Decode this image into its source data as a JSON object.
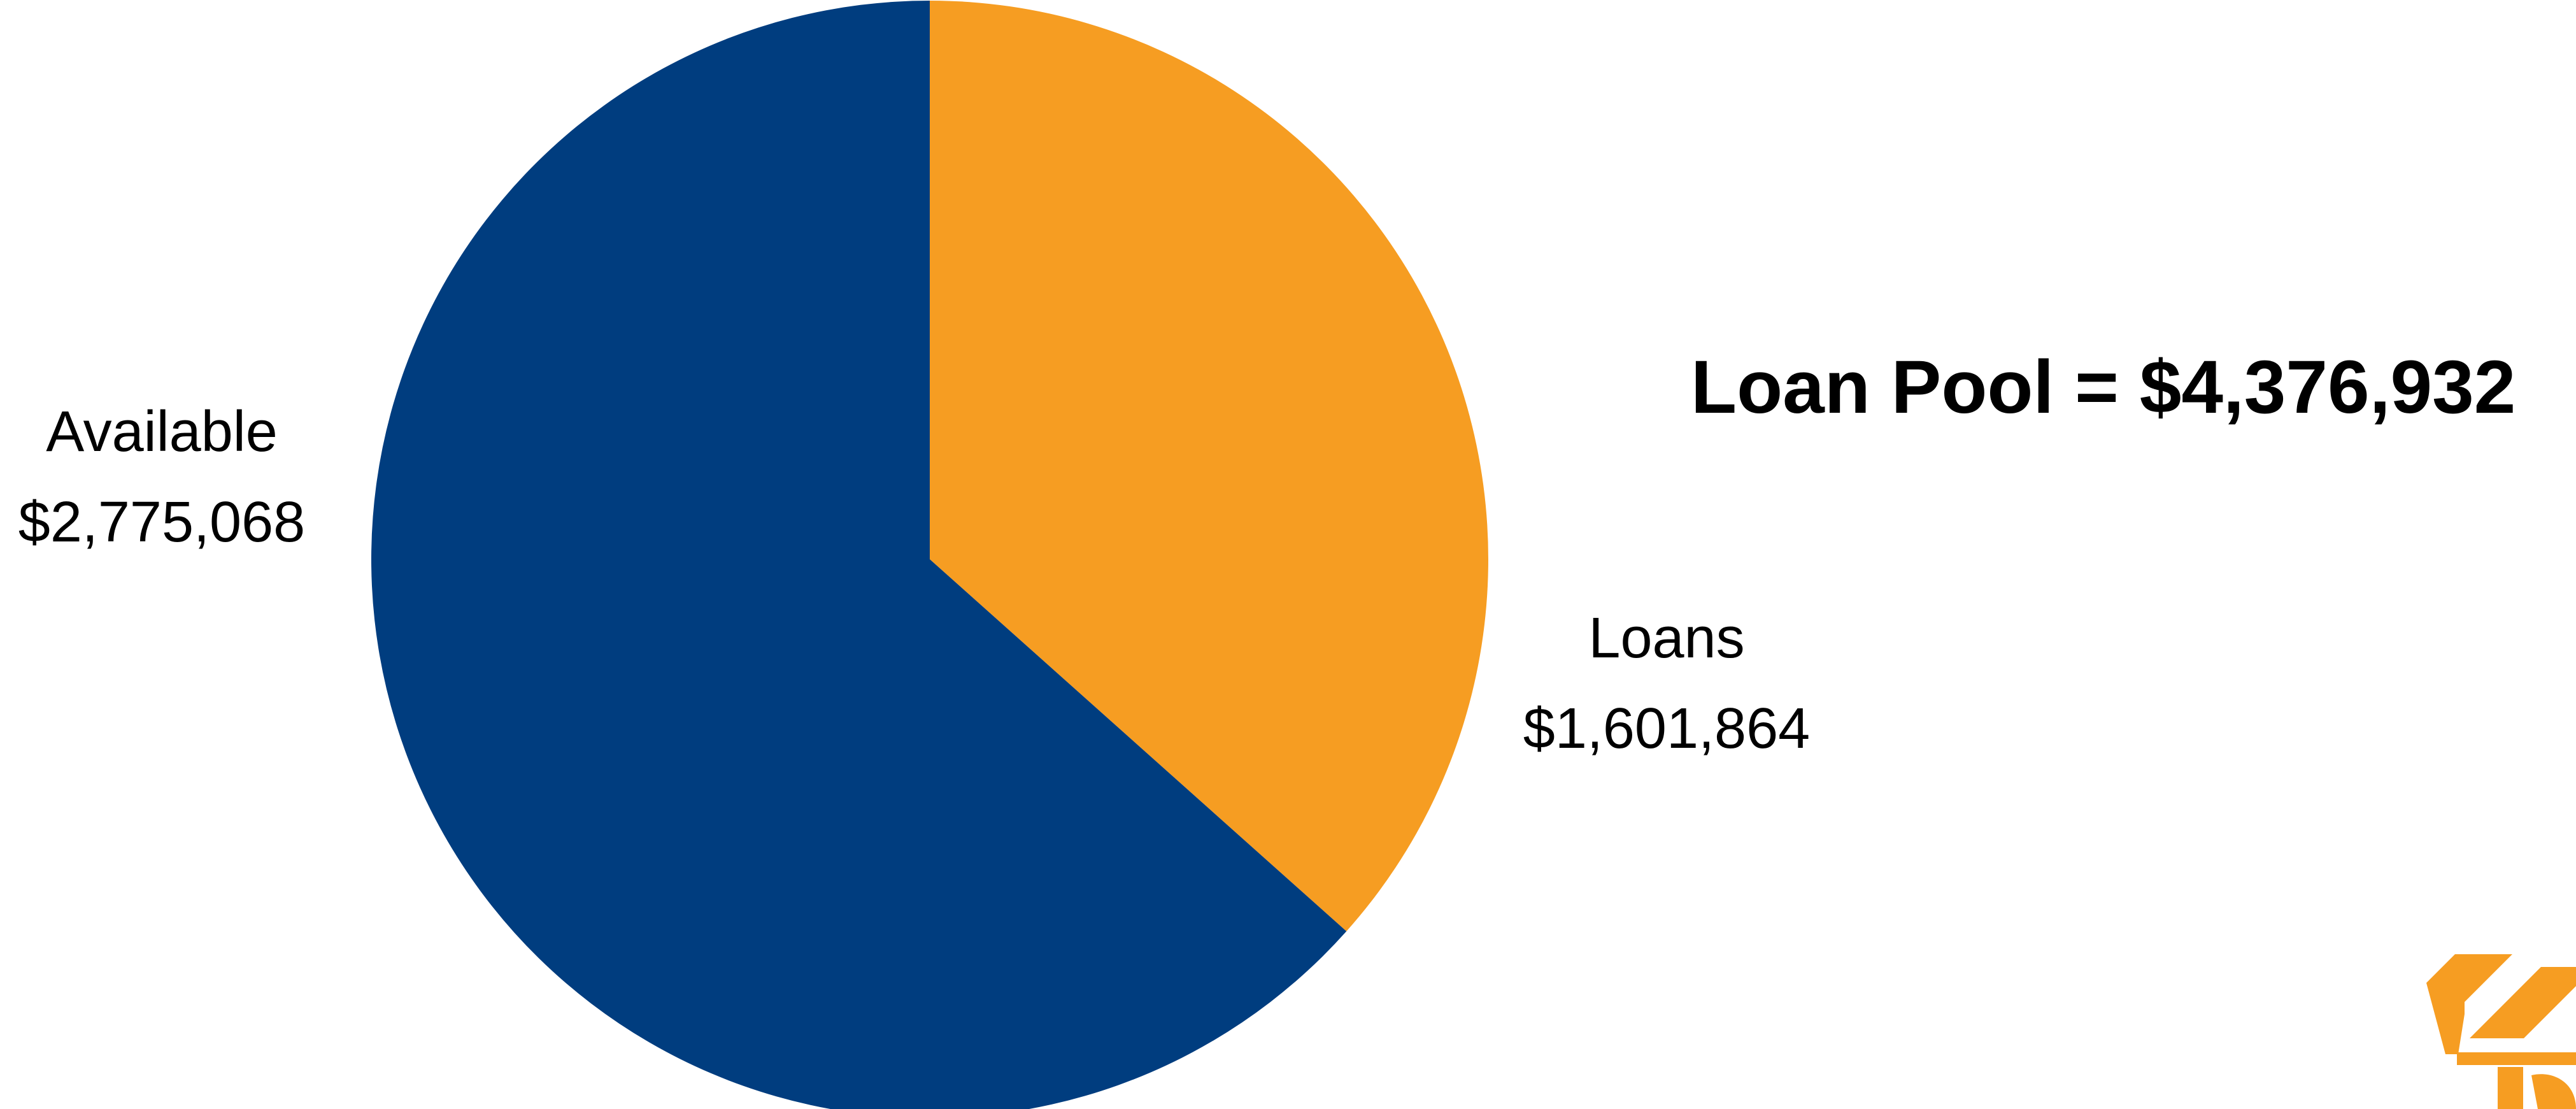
{
  "heading": {
    "text": "Loan Pool = $4,376,932"
  },
  "logo": {
    "icon": "striped-chevron-logo-icon",
    "color": "#F69D22"
  },
  "chart_data": {
    "type": "pie",
    "title": "",
    "categories": [
      "Loans",
      "Available"
    ],
    "values": [
      1601864,
      2775068
    ],
    "value_labels": [
      "$1,601,864",
      "$2,775,068"
    ],
    "colors": [
      "#F69D22",
      "#003D7F"
    ],
    "legend": "none",
    "labels": [
      {
        "name": "Loans",
        "value": "$1,601,864"
      },
      {
        "name": "Available",
        "value": "$2,775,068"
      }
    ]
  }
}
